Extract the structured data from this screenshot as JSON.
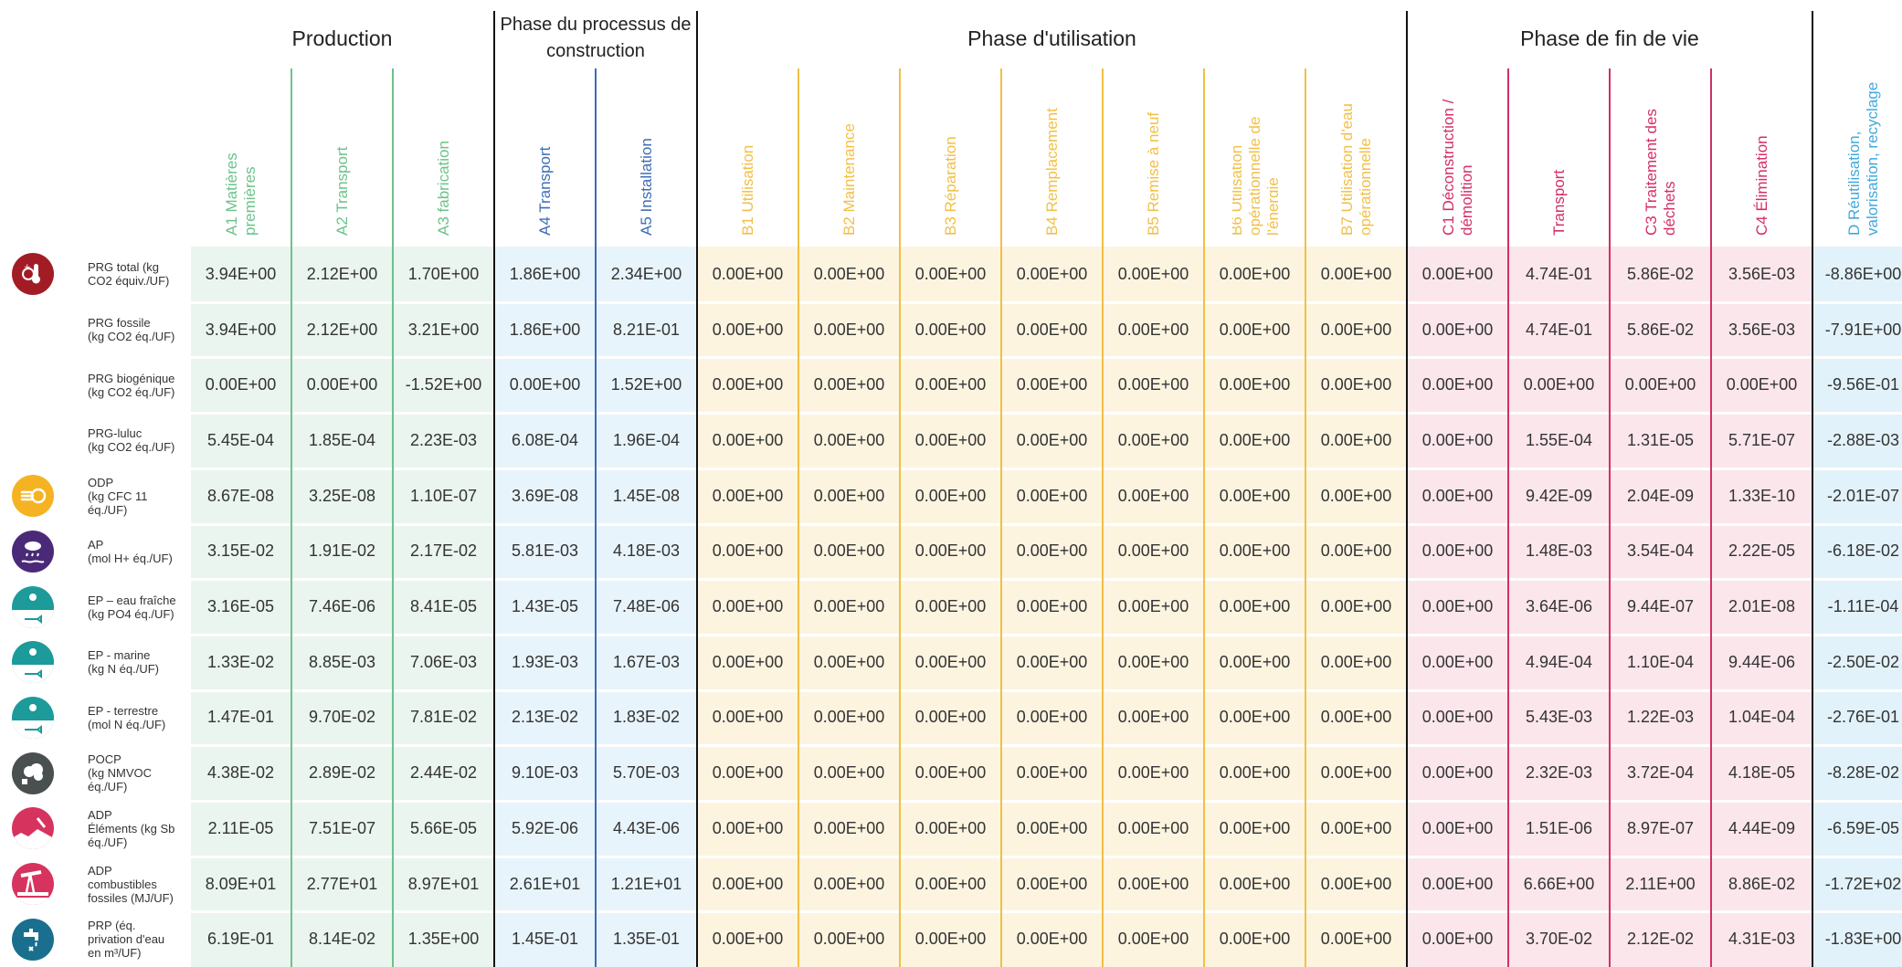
{
  "phases": [
    {
      "label": "Production",
      "start": 0,
      "span": 3
    },
    {
      "label": "Phase du processus de construction",
      "start": 3,
      "span": 2
    },
    {
      "label": "Phase d'utilisation",
      "start": 5,
      "span": 7
    },
    {
      "label": "Phase de fin de vie",
      "start": 12,
      "span": 4
    },
    {
      "label": "",
      "start": 16,
      "span": 1
    }
  ],
  "colors": {
    "production": "#6cc28a",
    "production_bg": "#eaf5ef",
    "construction": "#3d6db5",
    "construction_bg": "#e8f4fb",
    "usage": "#f2bf45",
    "usage_bg": "#fdf4e0",
    "endoflife": "#d42f63",
    "endoflife_bg": "#fbe6ec",
    "benefits": "#3fa9dc",
    "benefits_bg": "#e2f2fa"
  },
  "columns": [
    {
      "label": "A1 Matières premières",
      "group": "production"
    },
    {
      "label": "A2 Transport",
      "group": "production"
    },
    {
      "label": "A3 fabrication",
      "group": "production"
    },
    {
      "label": "A4 Transport",
      "group": "construction"
    },
    {
      "label": "A5 Installation",
      "group": "construction"
    },
    {
      "label": "B1 Utilisation",
      "group": "usage"
    },
    {
      "label": "B2 Maintenance",
      "group": "usage"
    },
    {
      "label": "B3 Réparation",
      "group": "usage"
    },
    {
      "label": "B4 Remplacement",
      "group": "usage"
    },
    {
      "label": "B5 Remise à neuf",
      "group": "usage"
    },
    {
      "label": "B6 Utilisation opérationnelle de l'énergie",
      "group": "usage"
    },
    {
      "label": "B7 Utilisation d'eau opérationnelle",
      "group": "usage"
    },
    {
      "label": "C1 Déconstruction / démolition",
      "group": "endoflife"
    },
    {
      "label": "Transport",
      "group": "endoflife"
    },
    {
      "label": "C3 Traitement des déchets",
      "group": "endoflife"
    },
    {
      "label": "C4 Élimination",
      "group": "endoflife"
    },
    {
      "label": "D Réutilisation, valorisation, recyclage",
      "group": "benefits"
    }
  ],
  "rows": [
    {
      "label": "PRG total (kg\nCO2 équiv./UF)",
      "icon": "thermometer-icon",
      "icon_color": "#a21c26",
      "values": [
        "3.94E+00",
        "2.12E+00",
        "1.70E+00",
        "1.86E+00",
        "2.34E+00",
        "0.00E+00",
        "0.00E+00",
        "0.00E+00",
        "0.00E+00",
        "0.00E+00",
        "0.00E+00",
        "0.00E+00",
        "0.00E+00",
        "4.74E-01",
        "5.86E-02",
        "3.56E-03",
        "-8.86E+00"
      ]
    },
    {
      "label": "PRG fossile\n(kg CO2 éq./UF)",
      "icon": "",
      "icon_color": "",
      "values": [
        "3.94E+00",
        "2.12E+00",
        "3.21E+00",
        "1.86E+00",
        "8.21E-01",
        "0.00E+00",
        "0.00E+00",
        "0.00E+00",
        "0.00E+00",
        "0.00E+00",
        "0.00E+00",
        "0.00E+00",
        "0.00E+00",
        "4.74E-01",
        "5.86E-02",
        "3.56E-03",
        "-7.91E+00"
      ]
    },
    {
      "label": "PRG biogénique\n(kg CO2 éq./UF)",
      "icon": "",
      "icon_color": "",
      "values": [
        "0.00E+00",
        "0.00E+00",
        "-1.52E+00",
        "0.00E+00",
        "1.52E+00",
        "0.00E+00",
        "0.00E+00",
        "0.00E+00",
        "0.00E+00",
        "0.00E+00",
        "0.00E+00",
        "0.00E+00",
        "0.00E+00",
        "0.00E+00",
        "0.00E+00",
        "0.00E+00",
        "-9.56E-01"
      ]
    },
    {
      "label": "PRG-luluc\n(kg CO2 éq./UF)",
      "icon": "",
      "icon_color": "",
      "values": [
        "5.45E-04",
        "1.85E-04",
        "2.23E-03",
        "6.08E-04",
        "1.96E-04",
        "0.00E+00",
        "0.00E+00",
        "0.00E+00",
        "0.00E+00",
        "0.00E+00",
        "0.00E+00",
        "0.00E+00",
        "0.00E+00",
        "1.55E-04",
        "1.31E-05",
        "5.71E-07",
        "-2.88E-03"
      ]
    },
    {
      "label": "ODP\n(kg CFC 11\néq./UF)",
      "icon": "ozone-icon",
      "icon_color": "#f5b323",
      "values": [
        "8.67E-08",
        "3.25E-08",
        "1.10E-07",
        "3.69E-08",
        "1.45E-08",
        "0.00E+00",
        "0.00E+00",
        "0.00E+00",
        "0.00E+00",
        "0.00E+00",
        "0.00E+00",
        "0.00E+00",
        "0.00E+00",
        "9.42E-09",
        "2.04E-09",
        "1.33E-10",
        "-2.01E-07"
      ]
    },
    {
      "label": "AP\n(mol H+  éq./UF)",
      "icon": "acid-rain-icon",
      "icon_color": "#4a2a78",
      "values": [
        "3.15E-02",
        "1.91E-02",
        "2.17E-02",
        "5.81E-03",
        "4.18E-03",
        "0.00E+00",
        "0.00E+00",
        "0.00E+00",
        "0.00E+00",
        "0.00E+00",
        "0.00E+00",
        "0.00E+00",
        "0.00E+00",
        "1.48E-03",
        "3.54E-04",
        "2.22E-05",
        "-6.18E-02"
      ]
    },
    {
      "label": "EP – eau fraîche\n(kg PO4 éq./UF)",
      "icon": "freshwater-icon",
      "icon_color": "#1d9a9a",
      "values": [
        "3.16E-05",
        "7.46E-06",
        "8.41E-05",
        "1.43E-05",
        "7.48E-06",
        "0.00E+00",
        "0.00E+00",
        "0.00E+00",
        "0.00E+00",
        "0.00E+00",
        "0.00E+00",
        "0.00E+00",
        "0.00E+00",
        "3.64E-06",
        "9.44E-07",
        "2.01E-08",
        "-1.11E-04"
      ]
    },
    {
      "label": "EP - marine\n(kg N éq./UF)",
      "icon": "marine-icon",
      "icon_color": "#1d9a9a",
      "values": [
        "1.33E-02",
        "8.85E-03",
        "7.06E-03",
        "1.93E-03",
        "1.67E-03",
        "0.00E+00",
        "0.00E+00",
        "0.00E+00",
        "0.00E+00",
        "0.00E+00",
        "0.00E+00",
        "0.00E+00",
        "0.00E+00",
        "4.94E-04",
        "1.10E-04",
        "9.44E-06",
        "-2.50E-02"
      ]
    },
    {
      "label": "EP - terrestre\n(mol N éq./UF)",
      "icon": "terrestrial-icon",
      "icon_color": "#1d9a9a",
      "values": [
        "1.47E-01",
        "9.70E-02",
        "7.81E-02",
        "2.13E-02",
        "1.83E-02",
        "0.00E+00",
        "0.00E+00",
        "0.00E+00",
        "0.00E+00",
        "0.00E+00",
        "0.00E+00",
        "0.00E+00",
        "0.00E+00",
        "5.43E-03",
        "1.22E-03",
        "1.04E-04",
        "-2.76E-01"
      ]
    },
    {
      "label": "POCP\n(kg NMVOC\néq./UF)",
      "icon": "smog-icon",
      "icon_color": "#4a4f4f",
      "values": [
        "4.38E-02",
        "2.89E-02",
        "2.44E-02",
        "9.10E-03",
        "5.70E-03",
        "0.00E+00",
        "0.00E+00",
        "0.00E+00",
        "0.00E+00",
        "0.00E+00",
        "0.00E+00",
        "0.00E+00",
        "0.00E+00",
        "2.32E-03",
        "3.72E-04",
        "4.18E-05",
        "-8.28E-02"
      ]
    },
    {
      "label": "ADP\nÉléments (kg Sb\néq./UF)",
      "icon": "mining-icon",
      "icon_color": "#d7335f",
      "values": [
        "2.11E-05",
        "7.51E-07",
        "5.66E-05",
        "5.92E-06",
        "4.43E-06",
        "0.00E+00",
        "0.00E+00",
        "0.00E+00",
        "0.00E+00",
        "0.00E+00",
        "0.00E+00",
        "0.00E+00",
        "0.00E+00",
        "1.51E-06",
        "8.97E-07",
        "4.44E-09",
        "-6.59E-05"
      ]
    },
    {
      "label": "ADP\ncombustibles\nfossiles (MJ/UF)",
      "icon": "oil-pump-icon",
      "icon_color": "#d7335f",
      "values": [
        "8.09E+01",
        "2.77E+01",
        "8.97E+01",
        "2.61E+01",
        "1.21E+01",
        "0.00E+00",
        "0.00E+00",
        "0.00E+00",
        "0.00E+00",
        "0.00E+00",
        "0.00E+00",
        "0.00E+00",
        "0.00E+00",
        "6.66E+00",
        "2.11E+00",
        "8.86E-02",
        "-1.72E+02"
      ]
    },
    {
      "label": "PRP (éq.\nprivation d'eau\nen m³/UF)",
      "icon": "water-tap-icon",
      "icon_color": "#1a6f8f",
      "values": [
        "6.19E-01",
        "8.14E-02",
        "1.35E+00",
        "1.45E-01",
        "1.35E-01",
        "0.00E+00",
        "0.00E+00",
        "0.00E+00",
        "0.00E+00",
        "0.00E+00",
        "0.00E+00",
        "0.00E+00",
        "0.00E+00",
        "3.70E-02",
        "2.12E-02",
        "4.31E-03",
        "-1.83E+00"
      ]
    }
  ]
}
